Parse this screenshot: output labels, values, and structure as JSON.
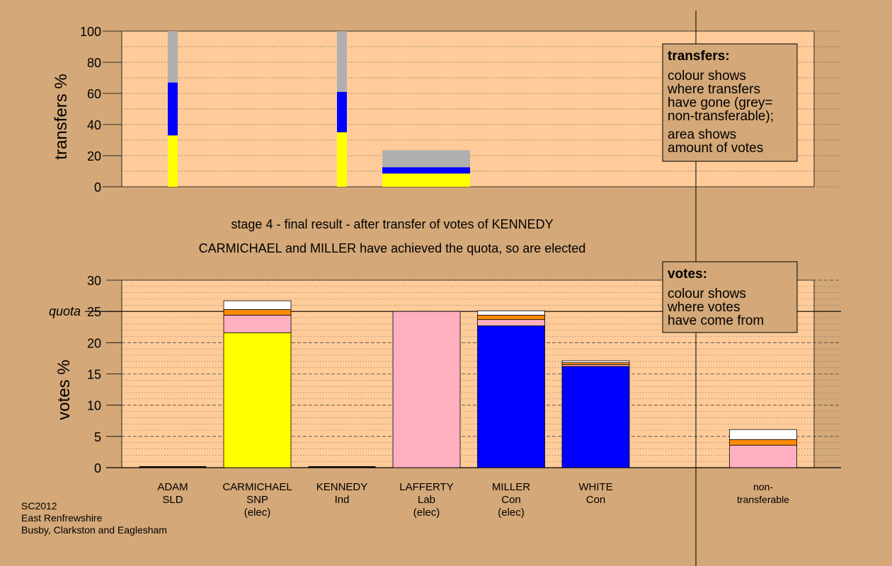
{
  "title_lines": [
    "stage 4 - final result - after transfer of votes of KENNEDY",
    "CARMICHAEL and MILLER have achieved the quota, so are elected"
  ],
  "footer_lines": [
    "SC2012",
    "East Renfrewshire",
    "Busby, Clarkston and Eaglesham"
  ],
  "legend_transfers": {
    "heading": "transfers:",
    "lines": [
      "colour shows",
      "where transfers",
      "have gone (grey=",
      "non-transferable);",
      "area shows",
      "amount of votes"
    ]
  },
  "legend_votes": {
    "heading": "votes:",
    "lines": [
      "colour shows",
      "where votes",
      "have come from"
    ]
  },
  "quota_label": "quota",
  "colors": {
    "background": "#d4a878",
    "plot": "#ffcc99",
    "SNP": "#ffff00",
    "Con": "#0000ff",
    "Lab": "#ffb0c0",
    "Ind": "#ff8c00",
    "SLD": "#ffffff",
    "nontransferable": "#b0b0b0"
  },
  "chart_data": [
    {
      "type": "bar",
      "stacked": true,
      "ylabel": "transfers %",
      "ylim": [
        0,
        100
      ],
      "yticks": [
        0,
        20,
        40,
        60,
        80,
        100
      ],
      "grid": "horizontal dotted",
      "transfers": [
        {
          "from": "ADAM",
          "segments": [
            {
              "to": "SNP",
              "value": 33
            },
            {
              "to": "Con",
              "value": 34
            },
            {
              "to": "nontransferable",
              "value": 33
            }
          ]
        },
        {
          "from": "KENNEDY",
          "segments": [
            {
              "to": "SNP",
              "value": 35
            },
            {
              "to": "Con",
              "value": 26
            },
            {
              "to": "nontransferable",
              "value": 39
            }
          ]
        },
        {
          "from": "LAFFERTY",
          "segments": [
            {
              "to": "SNP",
              "value": 8.5
            },
            {
              "to": "Con",
              "value": 4
            },
            {
              "to": "nontransferable",
              "value": 11
            }
          ]
        }
      ]
    },
    {
      "type": "bar",
      "stacked": true,
      "ylabel": "votes %",
      "ylim": [
        0,
        30
      ],
      "yticks": [
        0,
        5,
        10,
        15,
        20,
        25,
        30
      ],
      "quota": 25,
      "grid": "horizontal dashed",
      "categories": [
        {
          "name": "ADAM",
          "party": "SLD",
          "status": ""
        },
        {
          "name": "CARMICHAEL",
          "party": "SNP",
          "status": "(elec)"
        },
        {
          "name": "KENNEDY",
          "party": "Ind",
          "status": ""
        },
        {
          "name": "LAFFERTY",
          "party": "Lab",
          "status": "(elec)"
        },
        {
          "name": "MILLER",
          "party": "Con",
          "status": "(elec)"
        },
        {
          "name": "WHITE",
          "party": "Con",
          "status": ""
        },
        {
          "name": "non-",
          "party": "transferable",
          "status": ""
        }
      ],
      "stacks": [
        [],
        [
          {
            "src": "SNP",
            "value": 21.6
          },
          {
            "src": "Lab",
            "value": 2.8
          },
          {
            "src": "Ind",
            "value": 0.9
          },
          {
            "src": "SLD",
            "value": 1.4
          }
        ],
        [],
        [
          {
            "src": "Lab",
            "value": 25.0
          }
        ],
        [
          {
            "src": "Con",
            "value": 22.7
          },
          {
            "src": "Lab",
            "value": 1.0
          },
          {
            "src": "Ind",
            "value": 0.7
          },
          {
            "src": "SLD",
            "value": 0.7
          }
        ],
        [
          {
            "src": "Con",
            "value": 16.2
          },
          {
            "src": "Lab",
            "value": 0.3
          },
          {
            "src": "Ind",
            "value": 0.3
          },
          {
            "src": "SLD",
            "value": 0.3
          }
        ],
        [
          {
            "src": "Lab",
            "value": 3.6
          },
          {
            "src": "Ind",
            "value": 0.9
          },
          {
            "src": "SLD",
            "value": 1.6
          }
        ]
      ]
    }
  ]
}
